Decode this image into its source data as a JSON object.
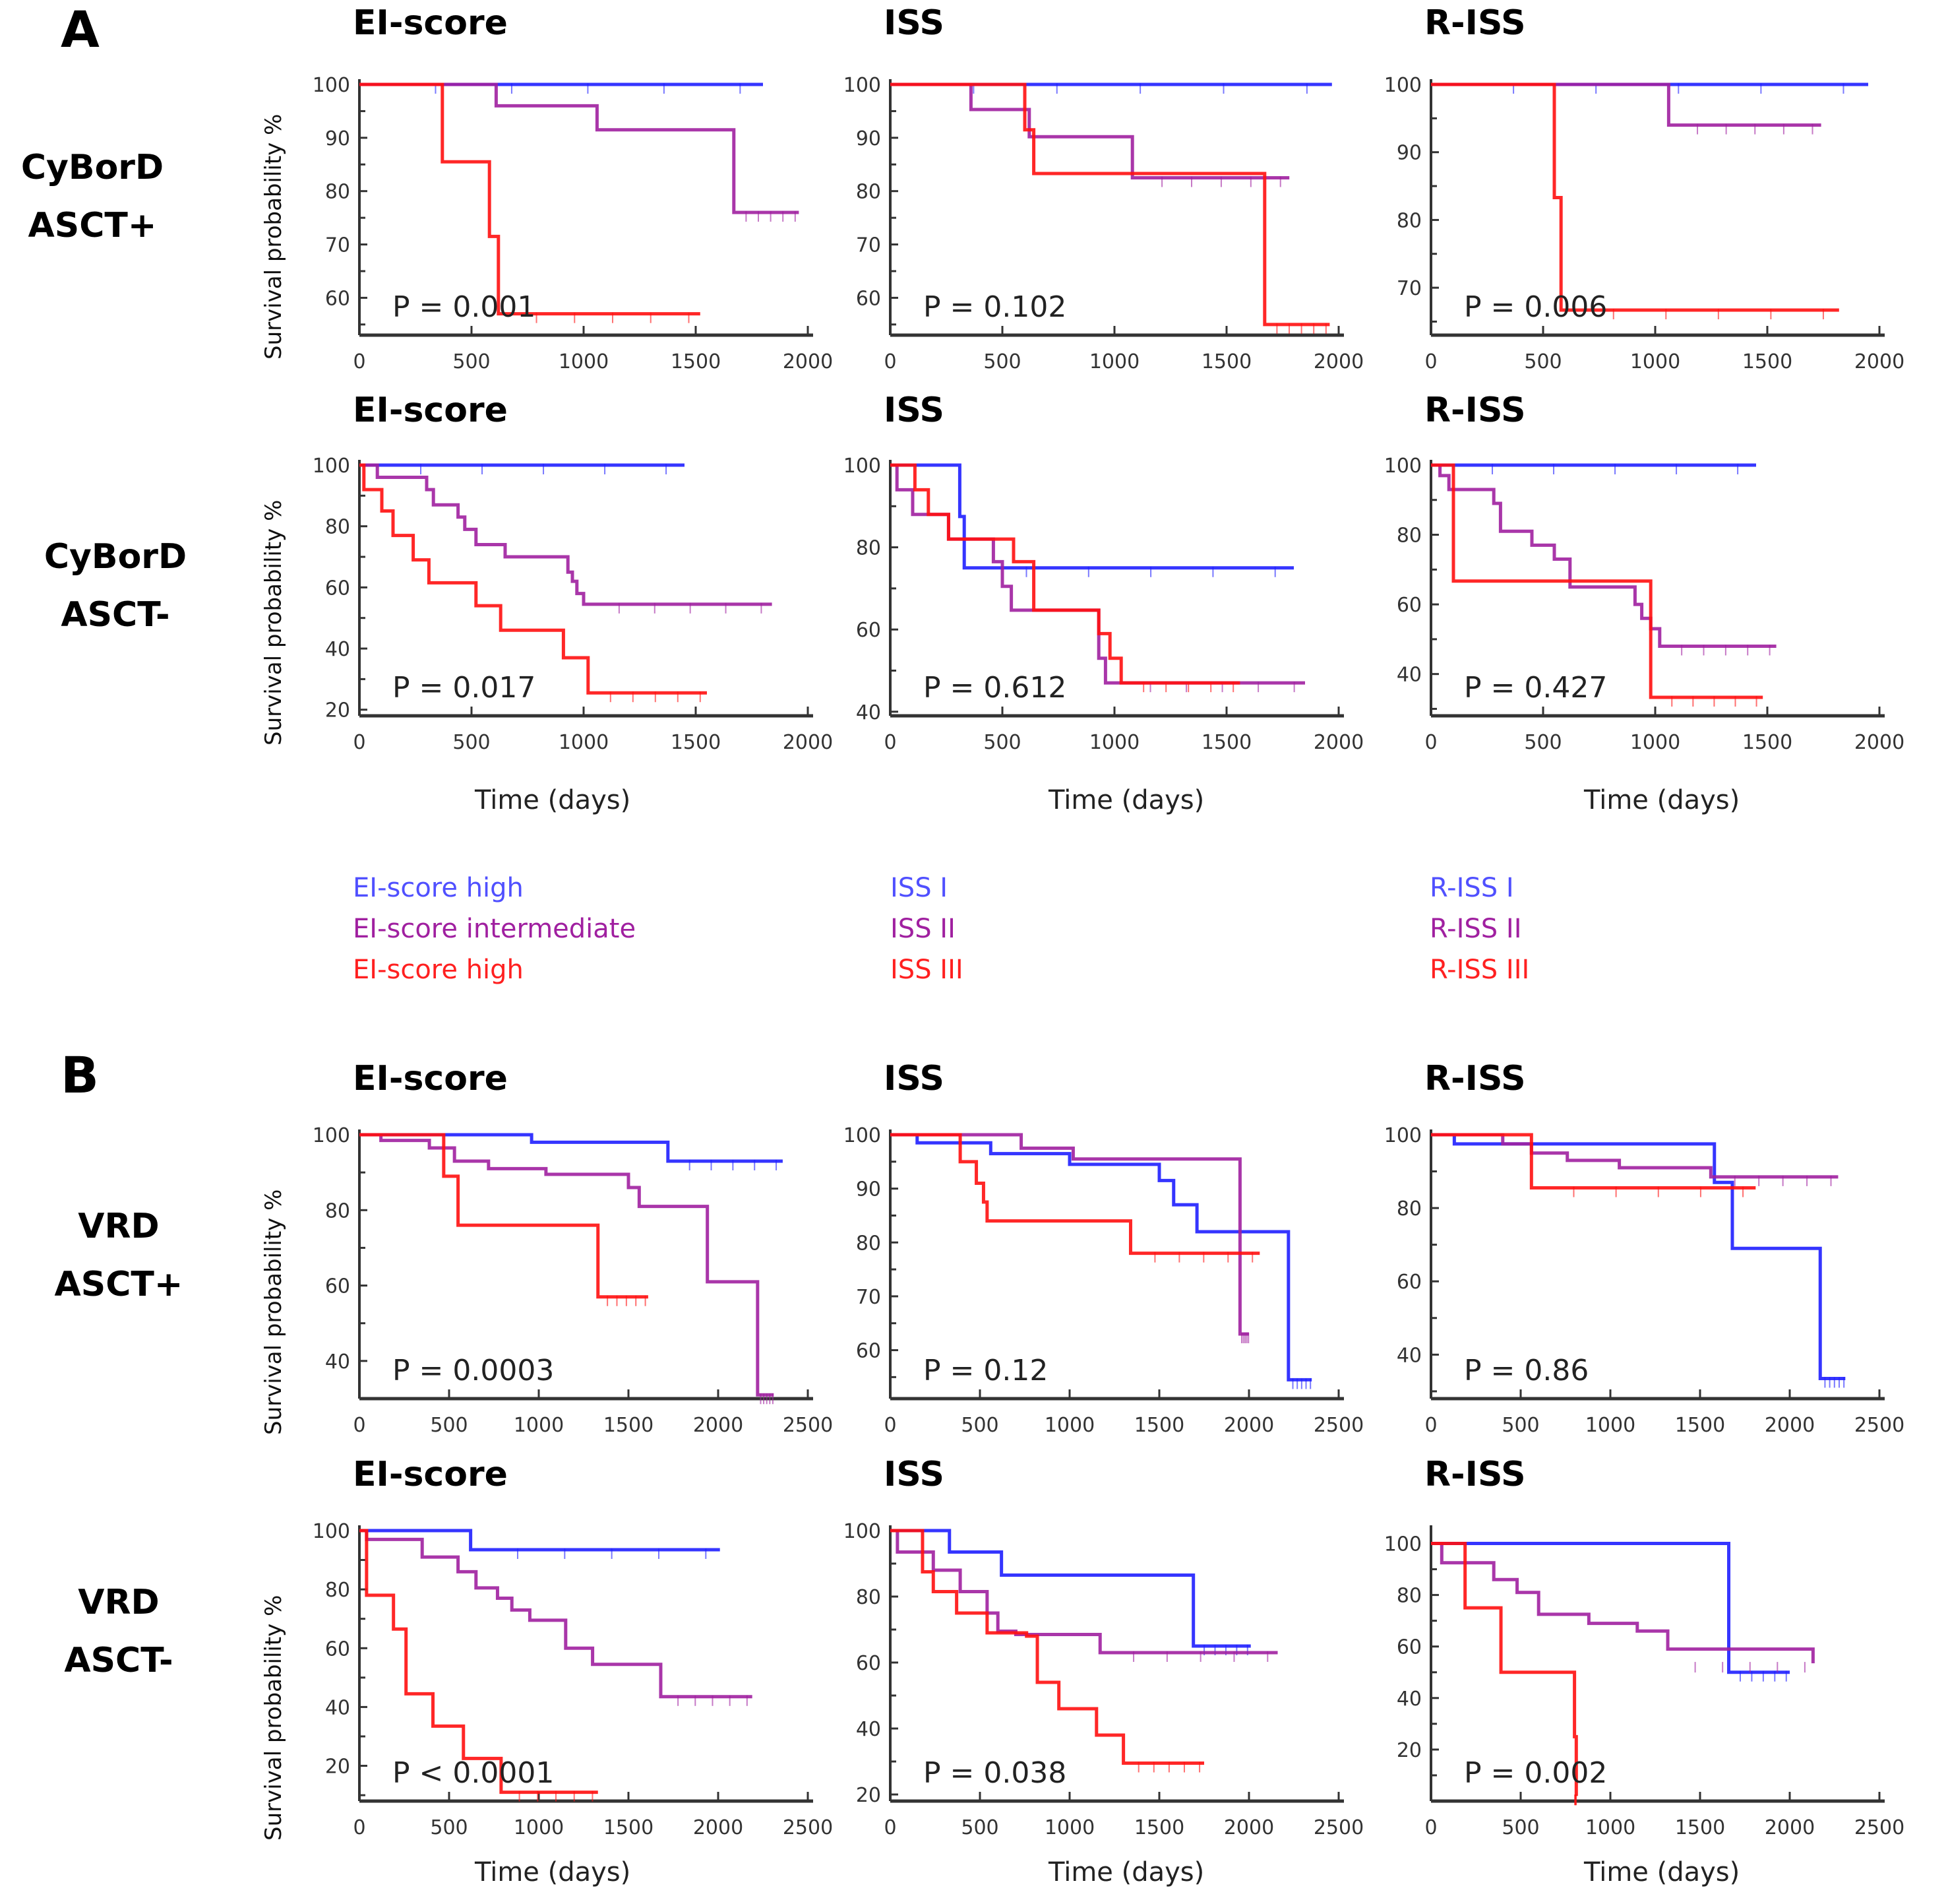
{
  "figure": {
    "panel_labels": [
      "A",
      "B"
    ],
    "row_labels": [
      [
        "CyBorD",
        "ASCT+"
      ],
      [
        "CyBorD",
        "ASCT-"
      ],
      [
        "VRD",
        "ASCT+"
      ],
      [
        "VRD",
        "ASCT-"
      ]
    ],
    "ylabel": "Survival probability %",
    "xlabel": "Time (days)",
    "colors": {
      "group1": "#1f1fff",
      "group2": "#a020a0",
      "group3": "#ff1010",
      "axis": "#333333"
    },
    "legend": {
      "columns": [
        {
          "items": [
            {
              "label": "EI-score high",
              "color": "#5050ff"
            },
            {
              "label": "EI-score intermediate",
              "color": "#a020a0"
            },
            {
              "label": "EI-score high",
              "color": "#ff2020"
            }
          ]
        },
        {
          "items": [
            {
              "label": "ISS I",
              "color": "#5050ff"
            },
            {
              "label": "ISS II",
              "color": "#a020a0"
            },
            {
              "label": "ISS III",
              "color": "#ff2020"
            }
          ]
        },
        {
          "items": [
            {
              "label": "R-ISS I",
              "color": "#5050ff"
            },
            {
              "label": "R-ISS II",
              "color": "#a020a0"
            },
            {
              "label": "R-ISS III",
              "color": "#ff2020"
            }
          ]
        }
      ]
    }
  },
  "chart_data": [
    {
      "type": "line",
      "row": 0,
      "col": 0,
      "title": "EI-score",
      "pvalue": "P = 0.001",
      "xlim": [
        0,
        2000
      ],
      "xticks": [
        0,
        500,
        1000,
        1500,
        2000
      ],
      "ylim": [
        53,
        100
      ],
      "yticks": [
        60,
        70,
        80,
        90,
        100
      ],
      "series": [
        {
          "name": "EI-score high",
          "x": [
            0,
            1800
          ],
          "y": [
            100,
            100
          ]
        },
        {
          "name": "EI-score intermediate",
          "x": [
            0,
            610,
            1060,
            1670,
            1960
          ],
          "y": [
            100,
            96,
            91.5,
            76,
            76
          ]
        },
        {
          "name": "EI-score high (red)",
          "x": [
            0,
            370,
            580,
            620,
            1520
          ],
          "y": [
            100,
            85.5,
            71.5,
            57,
            57
          ]
        }
      ]
    },
    {
      "type": "line",
      "row": 0,
      "col": 1,
      "title": "ISS",
      "pvalue": "P = 0.102",
      "xlim": [
        0,
        2000
      ],
      "xticks": [
        0,
        500,
        1000,
        1500,
        2000
      ],
      "ylim": [
        53,
        100
      ],
      "yticks": [
        60,
        70,
        80,
        90,
        100
      ],
      "series": [
        {
          "name": "ISS I",
          "x": [
            0,
            1970
          ],
          "y": [
            100,
            100
          ]
        },
        {
          "name": "ISS II",
          "x": [
            0,
            360,
            620,
            1080,
            1780
          ],
          "y": [
            100,
            95.3,
            90.2,
            82.5,
            82.5
          ]
        },
        {
          "name": "ISS III",
          "x": [
            0,
            600,
            640,
            1670,
            1960
          ],
          "y": [
            100,
            91.5,
            83.3,
            55,
            55
          ]
        }
      ]
    },
    {
      "type": "line",
      "row": 0,
      "col": 2,
      "title": "R-ISS",
      "pvalue": "P = 0.006",
      "xlim": [
        0,
        2000
      ],
      "xticks": [
        0,
        500,
        1000,
        1500,
        2000
      ],
      "ylim": [
        63,
        100
      ],
      "yticks": [
        70,
        80,
        90,
        100
      ],
      "series": [
        {
          "name": "R-ISS I",
          "x": [
            0,
            1950
          ],
          "y": [
            100,
            100
          ]
        },
        {
          "name": "R-ISS II",
          "x": [
            0,
            1060,
            1740
          ],
          "y": [
            100,
            94,
            94
          ]
        },
        {
          "name": "R-ISS III",
          "x": [
            0,
            550,
            580,
            1820
          ],
          "y": [
            100,
            83.3,
            66.7,
            66.7
          ]
        }
      ]
    },
    {
      "type": "line",
      "row": 1,
      "col": 0,
      "title": "EI-score",
      "pvalue": "P = 0.017",
      "xlim": [
        0,
        2000
      ],
      "xticks": [
        0,
        500,
        1000,
        1500,
        2000
      ],
      "ylim": [
        18,
        100
      ],
      "yticks": [
        20,
        40,
        60,
        80,
        100
      ],
      "series": [
        {
          "name": "EI-score high",
          "x": [
            0,
            1450
          ],
          "y": [
            100,
            100
          ]
        },
        {
          "name": "EI-score intermediate",
          "x": [
            0,
            80,
            300,
            330,
            440,
            470,
            520,
            650,
            930,
            950,
            970,
            1000,
            1840
          ],
          "y": [
            100,
            96,
            92,
            87,
            83,
            79,
            74,
            70,
            65,
            62,
            58,
            54.5,
            54.5
          ]
        },
        {
          "name": "EI-score high (red)",
          "x": [
            0,
            20,
            100,
            150,
            240,
            310,
            520,
            630,
            910,
            1020,
            1550
          ],
          "y": [
            100,
            92,
            85,
            77,
            69,
            61.5,
            54,
            46,
            37,
            25.5,
            25.5
          ]
        }
      ]
    },
    {
      "type": "line",
      "row": 1,
      "col": 1,
      "title": "ISS",
      "pvalue": "P = 0.612",
      "xlim": [
        0,
        2000
      ],
      "xticks": [
        0,
        500,
        1000,
        1500,
        2000
      ],
      "ylim": [
        39,
        100
      ],
      "yticks": [
        40,
        60,
        80,
        100
      ],
      "series": [
        {
          "name": "ISS I",
          "x": [
            0,
            310,
            330,
            1800
          ],
          "y": [
            100,
            87.5,
            75,
            75
          ]
        },
        {
          "name": "ISS II",
          "x": [
            0,
            30,
            100,
            260,
            460,
            500,
            540,
            930,
            960,
            1000,
            1850
          ],
          "y": [
            100,
            94,
            88,
            82,
            76.5,
            70.5,
            64.7,
            53,
            47,
            47,
            47
          ]
        },
        {
          "name": "ISS III",
          "x": [
            0,
            110,
            170,
            260,
            550,
            640,
            930,
            980,
            1030,
            1560
          ],
          "y": [
            100,
            94,
            88,
            82,
            76.5,
            64.7,
            59,
            53,
            47,
            47
          ]
        }
      ]
    },
    {
      "type": "line",
      "row": 1,
      "col": 2,
      "title": "R-ISS",
      "pvalue": "P = 0.427",
      "xlim": [
        0,
        2000
      ],
      "xticks": [
        0,
        500,
        1000,
        1500,
        2000
      ],
      "ylim": [
        28,
        100
      ],
      "yticks": [
        40,
        60,
        80,
        100
      ],
      "series": [
        {
          "name": "R-ISS I",
          "x": [
            0,
            1450
          ],
          "y": [
            100,
            100
          ]
        },
        {
          "name": "R-ISS II",
          "x": [
            0,
            40,
            80,
            280,
            310,
            450,
            550,
            620,
            910,
            940,
            980,
            1020,
            1540
          ],
          "y": [
            100,
            97,
            93,
            89,
            81,
            77,
            73,
            65,
            60,
            56,
            53,
            48,
            48
          ]
        },
        {
          "name": "R-ISS III",
          "x": [
            0,
            100,
            980,
            1480
          ],
          "y": [
            100,
            66.7,
            33.3,
            33.3
          ]
        }
      ]
    },
    {
      "type": "line",
      "row": 2,
      "col": 0,
      "title": "EI-score",
      "pvalue": "P = 0.0003",
      "xlim": [
        0,
        2500
      ],
      "xticks": [
        0,
        500,
        1000,
        1500,
        2000,
        2500
      ],
      "ylim": [
        30,
        100
      ],
      "yticks": [
        40,
        60,
        80,
        100
      ],
      "series": [
        {
          "name": "EI-score high",
          "x": [
            0,
            960,
            1720,
            2360
          ],
          "y": [
            100,
            98,
            93,
            93
          ]
        },
        {
          "name": "EI-score intermediate",
          "x": [
            0,
            120,
            390,
            530,
            720,
            1040,
            1500,
            1560,
            1940,
            2220,
            2310
          ],
          "y": [
            100,
            98.5,
            96.5,
            93,
            91,
            89.5,
            86,
            81,
            61,
            31,
            31
          ]
        },
        {
          "name": "EI-score high (red)",
          "x": [
            0,
            470,
            550,
            1330,
            1610
          ],
          "y": [
            100,
            89,
            76,
            57,
            57
          ]
        }
      ]
    },
    {
      "type": "line",
      "row": 2,
      "col": 1,
      "title": "ISS",
      "pvalue": "P = 0.12",
      "xlim": [
        0,
        2500
      ],
      "xticks": [
        0,
        500,
        1000,
        1500,
        2000,
        2500
      ],
      "ylim": [
        51,
        100
      ],
      "yticks": [
        60,
        70,
        80,
        90,
        100
      ],
      "series": [
        {
          "name": "ISS I",
          "x": [
            0,
            150,
            560,
            1000,
            1500,
            1580,
            1710,
            2220,
            2350
          ],
          "y": [
            100,
            98.5,
            96.5,
            94.5,
            91.5,
            87,
            82,
            54.5,
            54.5
          ]
        },
        {
          "name": "ISS II",
          "x": [
            0,
            730,
            1020,
            1950,
            2000
          ],
          "y": [
            100,
            97.5,
            95.5,
            63,
            63
          ]
        },
        {
          "name": "ISS III",
          "x": [
            0,
            390,
            480,
            520,
            540,
            1340,
            2060
          ],
          "y": [
            100,
            95,
            91,
            87.5,
            84,
            78,
            78
          ]
        }
      ]
    },
    {
      "type": "line",
      "row": 2,
      "col": 2,
      "title": "R-ISS",
      "pvalue": "P = 0.86",
      "xlim": [
        0,
        2500
      ],
      "xticks": [
        0,
        500,
        1000,
        1500,
        2000,
        2500
      ],
      "ylim": [
        28,
        100
      ],
      "yticks": [
        40,
        60,
        80,
        100
      ],
      "series": [
        {
          "name": "R-ISS I",
          "x": [
            0,
            130,
            560,
            1580,
            1680,
            2170,
            2310
          ],
          "y": [
            100,
            97.5,
            97.5,
            87,
            69,
            33.5,
            33.5
          ]
        },
        {
          "name": "R-ISS II",
          "x": [
            0,
            400,
            560,
            760,
            1050,
            1560,
            2270
          ],
          "y": [
            100,
            97.5,
            95,
            93,
            91,
            88.5,
            88.5
          ]
        },
        {
          "name": "R-ISS III",
          "x": [
            0,
            560,
            1810
          ],
          "y": [
            100,
            85.5,
            85.5
          ]
        }
      ]
    },
    {
      "type": "line",
      "row": 3,
      "col": 0,
      "title": "EI-score",
      "pvalue": "P < 0.0001",
      "xlim": [
        0,
        2500
      ],
      "xticks": [
        0,
        500,
        1000,
        1500,
        2000,
        2500
      ],
      "ylim": [
        8,
        100
      ],
      "yticks": [
        20,
        40,
        60,
        80,
        100
      ],
      "series": [
        {
          "name": "EI-score high",
          "x": [
            0,
            620,
            2010
          ],
          "y": [
            100,
            93.5,
            93.5
          ]
        },
        {
          "name": "EI-score intermediate",
          "x": [
            0,
            40,
            350,
            550,
            650,
            770,
            850,
            950,
            1150,
            1300,
            1680,
            2190
          ],
          "y": [
            100,
            97,
            91,
            86,
            80.5,
            77,
            73,
            69.5,
            60,
            54.5,
            43.5,
            43.5
          ]
        },
        {
          "name": "EI-score high (red)",
          "x": [
            0,
            40,
            190,
            260,
            410,
            580,
            790,
            1330
          ],
          "y": [
            100,
            78,
            66.5,
            44.5,
            33.5,
            22.5,
            11,
            11
          ]
        }
      ]
    },
    {
      "type": "line",
      "row": 3,
      "col": 1,
      "title": "ISS",
      "pvalue": "P = 0.038",
      "xlim": [
        0,
        2500
      ],
      "xticks": [
        0,
        500,
        1000,
        1500,
        2000,
        2500
      ],
      "ylim": [
        18,
        100
      ],
      "yticks": [
        20,
        40,
        60,
        80,
        100
      ],
      "series": [
        {
          "name": "ISS I",
          "x": [
            0,
            330,
            620,
            1690,
            2010
          ],
          "y": [
            100,
            93.5,
            86.5,
            65,
            65
          ]
        },
        {
          "name": "ISS II",
          "x": [
            0,
            40,
            240,
            390,
            540,
            600,
            700,
            1170,
            2160
          ],
          "y": [
            100,
            93.5,
            88,
            81.5,
            75,
            69.5,
            68.5,
            63,
            63
          ]
        },
        {
          "name": "ISS III",
          "x": [
            0,
            180,
            240,
            370,
            540,
            760,
            820,
            940,
            1150,
            1300,
            1750
          ],
          "y": [
            100,
            87.5,
            81.5,
            75,
            69,
            68,
            54,
            46,
            38,
            29.5,
            29.5
          ]
        }
      ]
    },
    {
      "type": "line",
      "row": 3,
      "col": 2,
      "title": "R-ISS",
      "pvalue": "P = 0.002",
      "xlim": [
        0,
        2500
      ],
      "xticks": [
        0,
        500,
        1000,
        1500,
        2000,
        2500
      ],
      "ylim": [
        0,
        105
      ],
      "yticks": [
        20,
        40,
        60,
        80,
        100
      ],
      "series": [
        {
          "name": "R-ISS I",
          "x": [
            0,
            1660,
            2000
          ],
          "y": [
            100,
            50,
            50
          ]
        },
        {
          "name": "R-ISS II",
          "x": [
            0,
            60,
            350,
            480,
            600,
            880,
            1150,
            1320,
            2130
          ],
          "y": [
            100,
            92.5,
            86,
            81,
            72.5,
            69,
            66,
            59,
            53.5
          ]
        },
        {
          "name": "R-ISS III",
          "x": [
            0,
            190,
            390,
            800,
            810
          ],
          "y": [
            100,
            75,
            50,
            25,
            2
          ]
        }
      ]
    }
  ]
}
